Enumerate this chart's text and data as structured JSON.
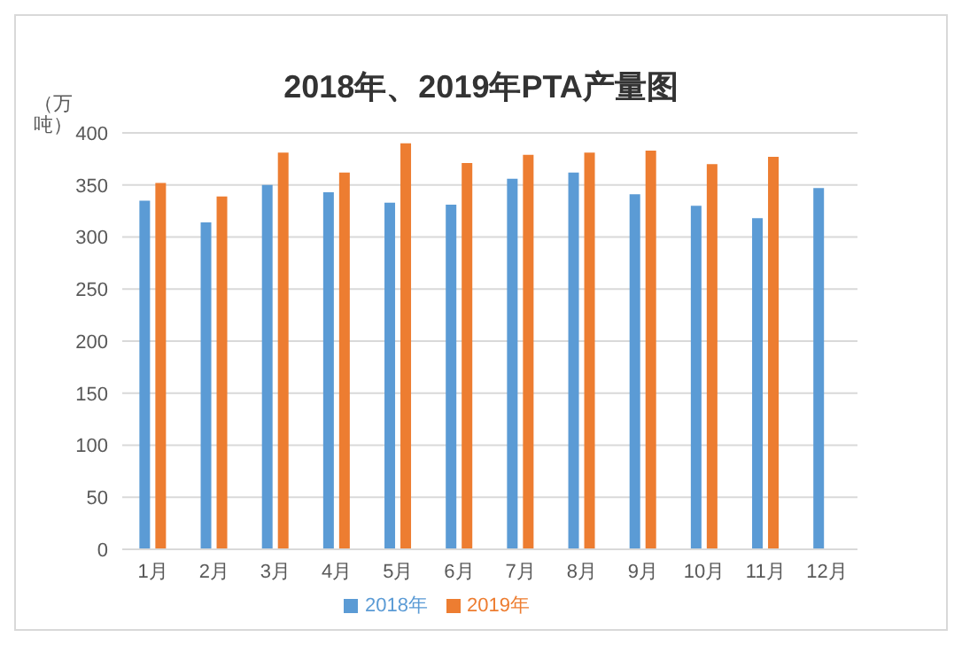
{
  "chart_data": {
    "type": "bar",
    "title": "2018年、2019年PTA产量图",
    "ylabel": "（万吨）",
    "categories": [
      "1月",
      "2月",
      "3月",
      "4月",
      "5月",
      "6月",
      "7月",
      "8月",
      "9月",
      "10月",
      "11月",
      "12月"
    ],
    "series": [
      {
        "name": "2018年",
        "color": "#5b9bd5",
        "values": [
          335,
          314,
          350,
          343,
          333,
          331,
          356,
          362,
          341,
          330,
          318,
          347
        ]
      },
      {
        "name": "2019年",
        "color": "#ed7d31",
        "values": [
          352,
          339,
          381,
          362,
          390,
          371,
          379,
          381,
          383,
          370,
          377,
          null
        ]
      }
    ],
    "ylim": [
      0,
      400
    ],
    "yticks": [
      0,
      50,
      100,
      150,
      200,
      250,
      300,
      350,
      400
    ],
    "grid": "y",
    "legend": "bottom"
  }
}
